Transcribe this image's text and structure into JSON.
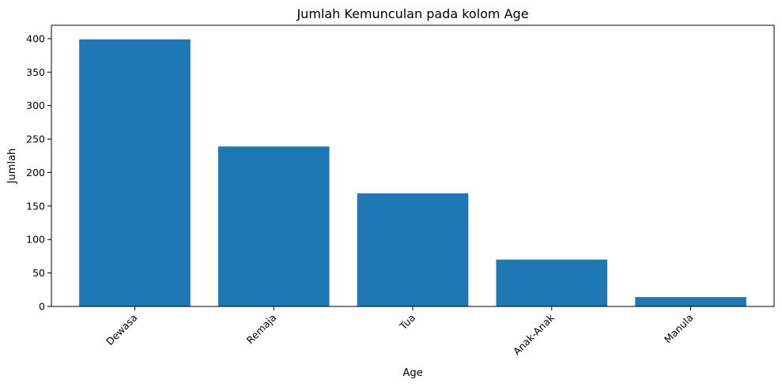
{
  "chart_data": {
    "type": "bar",
    "title": "Jumlah Kemunculan pada kolom Age",
    "xlabel": "Age",
    "ylabel": "Jumlah",
    "categories": [
      "Dewasa",
      "Remaja",
      "Tua",
      "Anak-Anak",
      "Manula"
    ],
    "values": [
      399,
      239,
      169,
      70,
      14
    ],
    "ylim": [
      0,
      420
    ],
    "yticks": [
      "0",
      "50",
      "100",
      "150",
      "200",
      "250",
      "300",
      "350",
      "400"
    ],
    "grid": false,
    "bar_color": "#1f77b4"
  }
}
